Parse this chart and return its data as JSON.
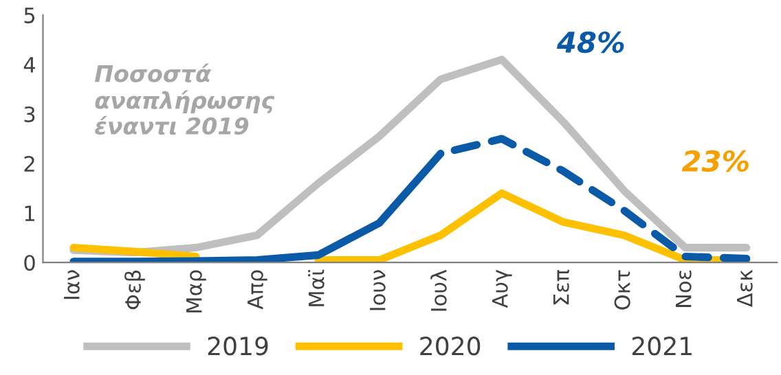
{
  "chart_data": {
    "type": "line",
    "categories": [
      "Ιαν",
      "Φεβ",
      "Μαρ",
      "Απρ",
      "Μαϊ",
      "Ιουν",
      "Ιουλ",
      "Αυγ",
      "Σεπ",
      "Οκτ",
      "Νοε",
      "Δεκ"
    ],
    "series": [
      {
        "name": "2019",
        "color": "#bfbfbf",
        "values": [
          0.25,
          0.2,
          0.3,
          0.55,
          1.6,
          2.55,
          3.7,
          4.1,
          2.85,
          1.45,
          0.3,
          0.3
        ]
      },
      {
        "name": "2020",
        "color": "#ffc000",
        "values": [
          0.3,
          0.22,
          0.12,
          null,
          0.05,
          0.05,
          0.55,
          1.4,
          0.82,
          0.55,
          0.05,
          0.05
        ]
      },
      {
        "name": "2021",
        "color": "#0a5aa8",
        "values": [
          0.02,
          0.02,
          0.03,
          0.05,
          0.15,
          0.8,
          2.2,
          null,
          null,
          null,
          null,
          null
        ]
      },
      {
        "color": "#0a5aa8",
        "line_style": "dashed",
        "values": [
          null,
          null,
          null,
          null,
          null,
          null,
          2.2,
          2.5,
          1.85,
          1.05,
          0.12,
          0.08
        ]
      }
    ],
    "ylim": [
      0,
      5
    ],
    "yticks": [
      0,
      1,
      2,
      3,
      4,
      5
    ],
    "grid": false,
    "legend": "bottom",
    "annotations": [
      "Ποσοστά\nαναπλήρωσης\nέναντι 2019",
      "48%",
      "23%"
    ]
  }
}
